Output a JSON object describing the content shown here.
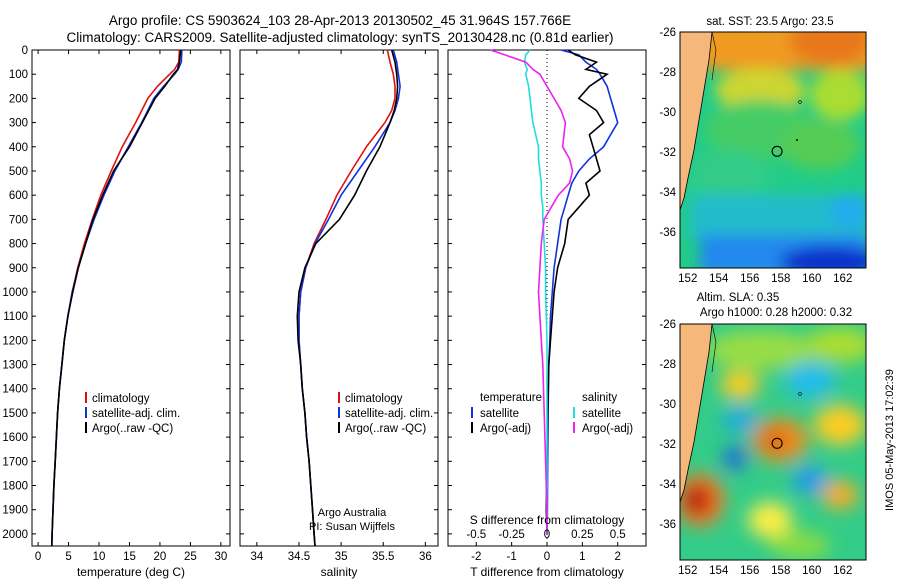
{
  "header": {
    "line1": "Argo profile: CS 5903624_103 28-Apr-2013 20130502_45 31.964S 157.766E",
    "line2": "Climatology: CARS2009. Satellite-adjusted climatology: synTS_20130428.nc (0.81d earlier)"
  },
  "footer_note": "IMOS 05-May-2013 17:02:39",
  "colors": {
    "clim": "#dd1111",
    "sat": "#1133dd",
    "argo": "#000000",
    "s_sat": "#22dddd",
    "s_argo": "#ee22ee"
  },
  "chart_data": [
    {
      "type": "line",
      "id": "temperature",
      "xlabel": "temperature (deg C)",
      "ylabel": "",
      "xlim": [
        -1,
        31.5
      ],
      "ylim": [
        2050,
        0
      ],
      "xticks": [
        "0",
        "5",
        "10",
        "15",
        "20",
        "25",
        "30"
      ],
      "yticks": [
        "0",
        "100",
        "200",
        "300",
        "400",
        "500",
        "600",
        "700",
        "800",
        "900",
        "1000",
        "1100",
        "1200",
        "1300",
        "1400",
        "1500",
        "1600",
        "1700",
        "1800",
        "1900",
        "2000"
      ],
      "legend": [
        "climatology",
        "satellite-adj. clim.",
        "Argo(..raw -QC)"
      ],
      "depth": [
        0,
        50,
        80,
        100,
        150,
        200,
        300,
        400,
        500,
        600,
        700,
        800,
        900,
        1000,
        1100,
        1200,
        1300,
        1400,
        1500,
        1600,
        1700,
        1800,
        1900,
        2000,
        2050
      ],
      "series": [
        {
          "name": "climatology",
          "color": "clim",
          "values": [
            23.2,
            23.1,
            22.4,
            21.6,
            19.6,
            18.0,
            16.0,
            13.8,
            12.0,
            10.3,
            8.9,
            7.6,
            6.5,
            5.6,
            4.9,
            4.3,
            3.9,
            3.5,
            3.2,
            3.0,
            2.8,
            2.6,
            2.45,
            2.3,
            2.25
          ]
        },
        {
          "name": "satellite-adj. clim.",
          "color": "sat",
          "values": [
            23.6,
            23.5,
            23.0,
            22.4,
            20.6,
            19.0,
            17.0,
            14.8,
            12.6,
            10.8,
            9.2,
            7.8,
            6.6,
            5.6,
            4.9,
            4.3,
            3.9,
            3.5,
            3.2,
            3.0,
            2.8,
            2.6,
            2.45,
            2.3,
            2.25
          ]
        },
        {
          "name": "Argo(..raw -QC)",
          "color": "argo",
          "values": [
            23.4,
            23.2,
            22.9,
            22.2,
            20.8,
            19.2,
            17.1,
            15.0,
            12.4,
            10.6,
            9.0,
            7.8,
            6.6,
            5.7,
            4.9,
            4.3,
            3.9,
            3.5,
            3.2,
            3.0,
            2.8,
            2.6,
            2.45,
            2.3,
            2.25
          ]
        }
      ]
    },
    {
      "type": "line",
      "id": "salinity",
      "xlabel": "salinity",
      "xlim": [
        33.8,
        36.15
      ],
      "ylim": [
        2050,
        0
      ],
      "xticks": [
        "34",
        "34.5",
        "35",
        "35.5",
        "36"
      ],
      "legend": [
        "climatology",
        "satellite-adj. clim.",
        "Argo(..raw -QC)"
      ],
      "annotation": [
        "Argo Australia",
        "PI: Susan Wijffels"
      ],
      "depth": [
        0,
        50,
        100,
        150,
        200,
        250,
        300,
        400,
        500,
        600,
        700,
        800,
        900,
        1000,
        1100,
        1200,
        1300,
        1400,
        1500,
        1600,
        1700,
        1800,
        1900,
        2000,
        2050
      ],
      "series": [
        {
          "name": "climatology",
          "color": "clim",
          "values": [
            35.55,
            35.58,
            35.62,
            35.64,
            35.64,
            35.6,
            35.52,
            35.3,
            35.12,
            34.95,
            34.82,
            34.68,
            34.58,
            34.52,
            34.5,
            34.5,
            34.52,
            34.54,
            34.57,
            34.59,
            34.62,
            34.64,
            34.66,
            34.68,
            34.69
          ]
        },
        {
          "name": "satellite-adj. clim.",
          "color": "sat",
          "values": [
            35.62,
            35.66,
            35.68,
            35.7,
            35.68,
            35.64,
            35.58,
            35.4,
            35.2,
            35.0,
            34.85,
            34.69,
            34.58,
            34.52,
            34.5,
            34.5,
            34.52,
            34.54,
            34.57,
            34.59,
            34.62,
            34.64,
            34.66,
            34.68,
            34.69
          ]
        },
        {
          "name": "Argo(..raw -QC)",
          "color": "argo",
          "values": [
            35.6,
            35.64,
            35.66,
            35.67,
            35.66,
            35.63,
            35.58,
            35.46,
            35.3,
            35.16,
            34.98,
            34.7,
            34.57,
            34.5,
            34.48,
            34.49,
            34.52,
            34.54,
            34.57,
            34.59,
            34.62,
            34.64,
            34.66,
            34.68,
            34.69
          ]
        }
      ]
    },
    {
      "type": "line",
      "id": "difference",
      "xlabel": "T difference from climatology",
      "xlabel_top": "S difference from climatology",
      "xlim": [
        -2.8,
        2.8
      ],
      "ylim": [
        2050,
        0
      ],
      "xticks_T": [
        "-2",
        "-1",
        "0",
        "1",
        "2"
      ],
      "xticks_S": [
        "-0.5",
        "-0.25",
        "0",
        "0.25",
        "0.5"
      ],
      "legend_T_title": "temperature",
      "legend_S_title": "salinity",
      "legend_T": [
        "satellite",
        "Argo(-adj)"
      ],
      "legend_S": [
        "satellite",
        "Argo(-adj)"
      ],
      "depth": [
        0,
        20,
        50,
        80,
        100,
        150,
        200,
        250,
        300,
        350,
        400,
        450,
        500,
        550,
        600,
        650,
        700,
        800,
        900,
        1000,
        1100,
        1200,
        1300,
        1500,
        1700,
        1900,
        2000
      ],
      "series": [
        {
          "name": "T satellite",
          "color": "sat",
          "values": [
            0.4,
            0.9,
            1.1,
            1.4,
            1.5,
            1.7,
            1.8,
            1.9,
            2.0,
            1.8,
            1.6,
            1.2,
            0.9,
            0.7,
            0.6,
            0.5,
            0.4,
            0.3,
            0.2,
            0.15,
            0.1,
            0.08,
            0.05,
            0.03,
            0.02,
            0.01,
            0.0
          ]
        },
        {
          "name": "T Argo(-adj)",
          "color": "argo",
          "values": [
            0.6,
            0.8,
            1.4,
            1.1,
            1.7,
            1.2,
            0.9,
            1.4,
            1.6,
            1.2,
            1.3,
            1.4,
            1.5,
            1.1,
            1.2,
            0.9,
            0.6,
            0.5,
            0.3,
            0.2,
            0.15,
            0.1,
            0.05,
            0.02,
            0.0,
            -0.02,
            0.0
          ]
        },
        {
          "name": "S satellite",
          "color": "s_sat",
          "values": [
            -0.12,
            -0.15,
            -0.16,
            -0.14,
            -0.15,
            -0.13,
            -0.12,
            -0.11,
            -0.1,
            -0.08,
            -0.06,
            -0.06,
            -0.05,
            -0.04,
            -0.04,
            -0.03,
            -0.03,
            -0.02,
            -0.01,
            -0.01,
            -0.005,
            0,
            0,
            0,
            0,
            0,
            0
          ]
        },
        {
          "name": "S Argo(-adj)",
          "color": "s_argo",
          "values": [
            -0.4,
            -0.3,
            -0.15,
            -0.1,
            -0.05,
            0.0,
            0.05,
            0.1,
            0.13,
            0.12,
            0.11,
            0.16,
            0.18,
            0.16,
            0.08,
            0.03,
            -0.02,
            -0.04,
            -0.05,
            -0.06,
            -0.05,
            -0.04,
            -0.03,
            -0.02,
            -0.01,
            0,
            0
          ]
        }
      ]
    },
    {
      "type": "heatmap",
      "id": "map_sst",
      "title": "sat. SST: 23.5  Argo: 23.5",
      "xlim": [
        151.5,
        163.5
      ],
      "ylim": [
        -37.8,
        -26
      ],
      "xticks": [
        "152",
        "154",
        "156",
        "158",
        "160",
        "162"
      ],
      "yticks": [
        "-26",
        "-28",
        "-30",
        "-32",
        "-34",
        "-36"
      ],
      "float_position": {
        "lon": 157.766,
        "lat": -31.964
      }
    },
    {
      "type": "heatmap",
      "id": "map_sla",
      "title_line1": "Altim. SLA: 0.35",
      "title_line2": "Argo h1000: 0.28 h2000: 0.32",
      "xlim": [
        151.5,
        163.5
      ],
      "ylim": [
        -37.8,
        -26
      ],
      "xticks": [
        "152",
        "154",
        "156",
        "158",
        "160",
        "162"
      ],
      "yticks": [
        "-26",
        "-28",
        "-30",
        "-32",
        "-34",
        "-36"
      ],
      "float_position": {
        "lon": 157.766,
        "lat": -31.964
      }
    }
  ]
}
